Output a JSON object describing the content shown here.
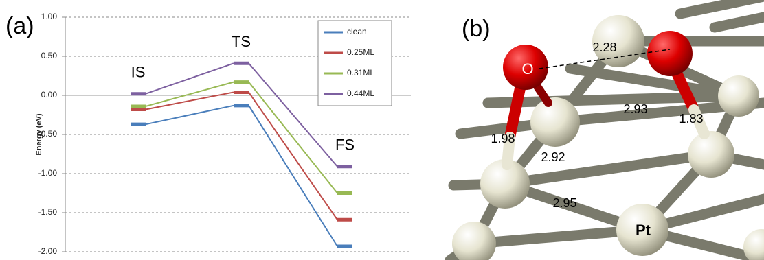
{
  "chart_data": {
    "type": "energy-levels",
    "panel_label": "(a)",
    "y_label": "Energy (eV)",
    "categories": [
      "IS",
      "TS",
      "FS"
    ],
    "series": [
      {
        "name": "clean",
        "color": "#4a7ebb",
        "values": [
          -0.37,
          -0.13,
          -1.93
        ]
      },
      {
        "name": "0.25ML",
        "color": "#be4b48",
        "values": [
          -0.18,
          0.04,
          -1.59
        ]
      },
      {
        "name": "0.31ML",
        "color": "#98b954",
        "values": [
          -0.14,
          0.17,
          -1.25
        ]
      },
      {
        "name": "0.44ML",
        "color": "#7d60a0",
        "values": [
          0.02,
          0.41,
          -0.91
        ]
      }
    ],
    "ylim": [
      -2,
      1
    ],
    "yticks": [
      {
        "value": -2,
        "label": "-2.00"
      },
      {
        "value": -1.5,
        "label": "-1.50"
      },
      {
        "value": -1,
        "label": "-1.00"
      },
      {
        "value": -0.5,
        "label": "-0.50"
      },
      {
        "value": 0,
        "label": "0.00"
      },
      {
        "value": 0.5,
        "label": "0.50"
      },
      {
        "value": 1,
        "label": "1.00"
      }
    ],
    "grid": true,
    "legend": "upper right"
  },
  "structure": {
    "panel_label": "(b)",
    "atoms": [
      "O",
      "Pt"
    ],
    "distances": [
      2.28,
      2.93,
      1.98,
      2.92,
      1.83,
      2.95
    ]
  }
}
